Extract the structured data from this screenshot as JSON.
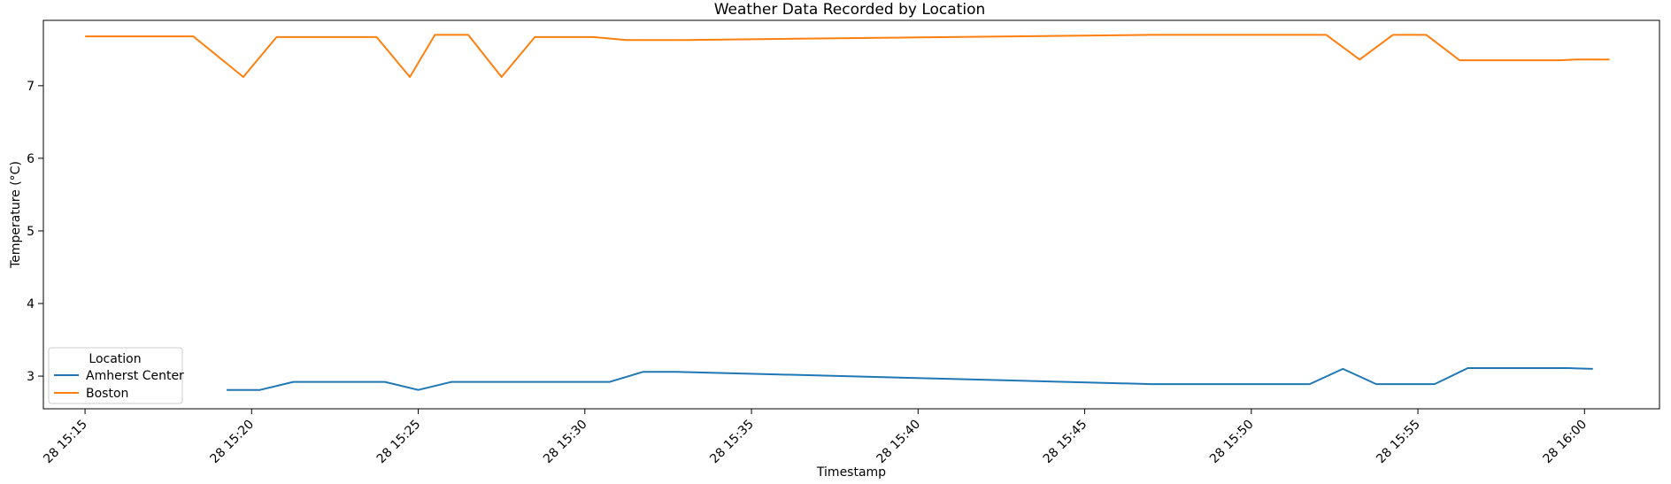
{
  "chart_data": {
    "type": "line",
    "title": "Weather Data Recorded by Location",
    "xlabel": "Timestamp",
    "ylabel": "Temperature (°C)",
    "xlim": [
      "28 15:13:45",
      "28 16:02:15"
    ],
    "ylim": [
      2.55,
      7.9
    ],
    "x_ticks": [
      "28 15:15",
      "28 15:20",
      "28 15:25",
      "28 15:30",
      "28 15:35",
      "28 15:40",
      "28 15:45",
      "28 15:50",
      "28 15:55",
      "28 16:00"
    ],
    "y_ticks": [
      3,
      4,
      5,
      6,
      7
    ],
    "grid": false,
    "legend": {
      "title": "Location",
      "placement": "lower-left"
    },
    "series": [
      {
        "name": "Amherst Center",
        "color": "#1f77b4",
        "points": [
          [
            "28 15:19:15",
            2.81
          ],
          [
            "28 15:20:15",
            2.81
          ],
          [
            "28 15:21:15",
            2.92
          ],
          [
            "28 15:24:00",
            2.92
          ],
          [
            "28 15:25:00",
            2.81
          ],
          [
            "28 15:26:00",
            2.92
          ],
          [
            "28 15:30:45",
            2.92
          ],
          [
            "28 15:31:45",
            3.06
          ],
          [
            "28 15:32:45",
            3.06
          ],
          [
            "28 15:47:00",
            2.89
          ],
          [
            "28 15:51:45",
            2.89
          ],
          [
            "28 15:52:45",
            3.1
          ],
          [
            "28 15:53:45",
            2.89
          ],
          [
            "28 15:55:30",
            2.89
          ],
          [
            "28 15:56:30",
            3.11
          ],
          [
            "28 15:59:30",
            3.11
          ],
          [
            "28 16:00:15",
            3.1
          ]
        ]
      },
      {
        "name": "Boston",
        "color": "#ff7f0e",
        "points": [
          [
            "28 15:15:00",
            7.68
          ],
          [
            "28 15:18:15",
            7.68
          ],
          [
            "28 15:19:45",
            7.12
          ],
          [
            "28 15:20:45",
            7.67
          ],
          [
            "28 15:23:45",
            7.67
          ],
          [
            "28 15:24:45",
            7.12
          ],
          [
            "28 15:25:30",
            7.7
          ],
          [
            "28 15:26:30",
            7.7
          ],
          [
            "28 15:27:30",
            7.12
          ],
          [
            "28 15:28:30",
            7.67
          ],
          [
            "28 15:30:15",
            7.67
          ],
          [
            "28 15:31:15",
            7.63
          ],
          [
            "28 15:33:00",
            7.63
          ],
          [
            "28 15:47:00",
            7.7
          ],
          [
            "28 15:52:15",
            7.7
          ],
          [
            "28 15:53:15",
            7.36
          ],
          [
            "28 15:54:15",
            7.7
          ],
          [
            "28 15:55:15",
            7.7
          ],
          [
            "28 15:56:15",
            7.35
          ],
          [
            "28 15:59:15",
            7.35
          ],
          [
            "28 15:59:45",
            7.36
          ],
          [
            "28 16:00:45",
            7.36
          ]
        ]
      }
    ]
  }
}
